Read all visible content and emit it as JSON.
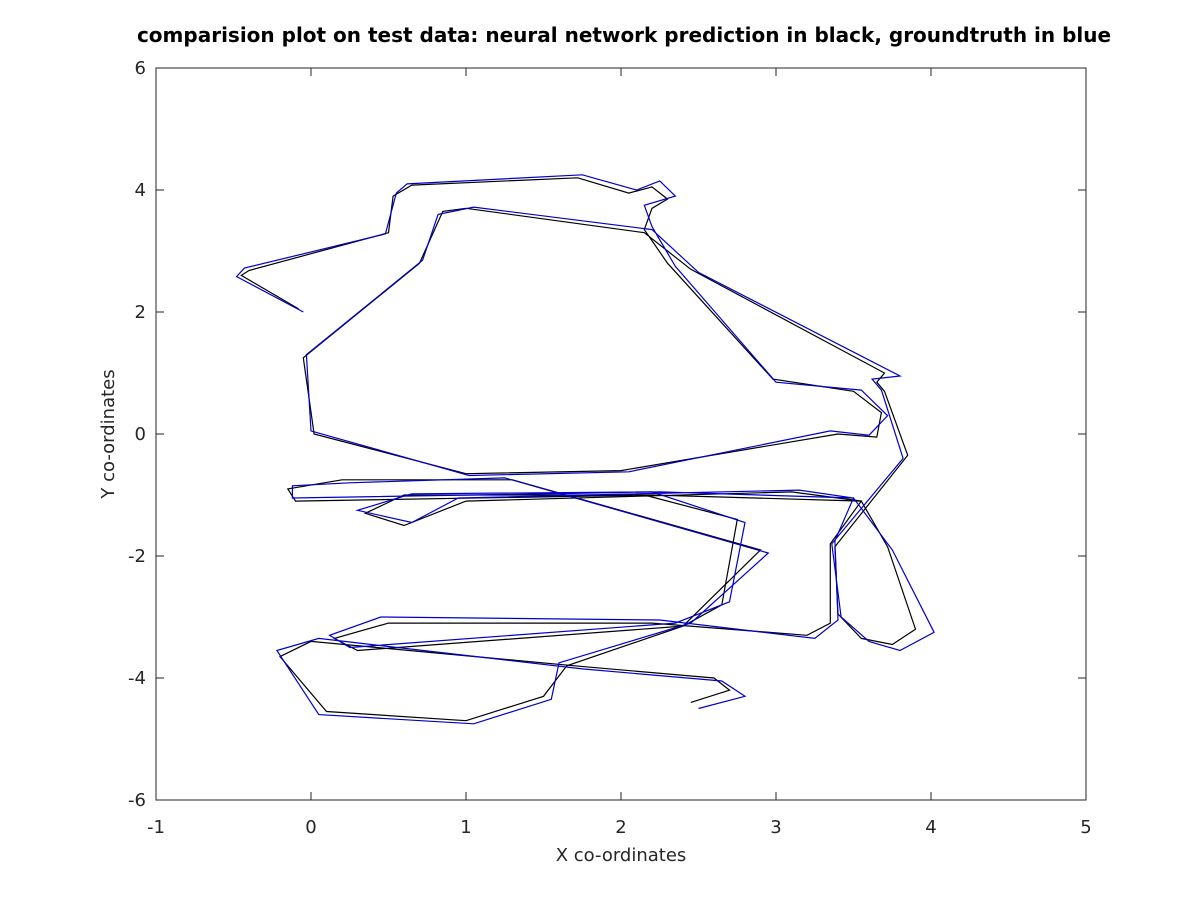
{
  "chart_data": {
    "type": "line",
    "title": "comparision plot on test data: neural network prediction in black, groundtruth in blue",
    "xlabel": "X co-ordinates",
    "ylabel": "Y co-ordinates",
    "xlim": [
      -1,
      5
    ],
    "xticks": [
      -1,
      0,
      1,
      2,
      3,
      4,
      5
    ],
    "ylim": [
      -6,
      6
    ],
    "yticks": [
      -6,
      -4,
      -2,
      0,
      2,
      4,
      6
    ],
    "series": [
      {
        "color": "#000000",
        "x": [
          -0.08,
          -0.45,
          -0.4,
          0.5,
          0.53,
          0.65,
          1.72,
          2.05,
          2.2,
          2.3,
          2.2,
          2.15,
          2.3,
          2.98,
          3.5,
          3.68,
          3.65,
          3.4,
          2.0,
          1.0,
          0.02,
          -0.05,
          0.7,
          0.85,
          1.0,
          2.15,
          2.45,
          3.7,
          3.65,
          3.7,
          3.85,
          3.38,
          3.4,
          3.55,
          3.75,
          3.9,
          3.72,
          3.55,
          3.1,
          1.0,
          0.6,
          0.35,
          0.6,
          2.15,
          2.75,
          2.65,
          2.4,
          0.3,
          0.15,
          0.5,
          2.2,
          3.2,
          3.35,
          3.35,
          3.55,
          2.2,
          -0.1,
          -0.15,
          0.2,
          1.3,
          2.9,
          2.4,
          1.65,
          1.5,
          1.0,
          0.1,
          -0.2,
          0.0,
          1.7,
          2.6,
          2.7,
          2.45
        ],
        "values": [
          2.05,
          2.6,
          2.68,
          3.3,
          3.9,
          4.08,
          4.2,
          3.95,
          4.05,
          3.85,
          3.7,
          3.35,
          2.8,
          0.9,
          0.7,
          0.35,
          -0.05,
          0.0,
          -0.6,
          -0.65,
          0.0,
          1.25,
          2.8,
          3.65,
          3.7,
          3.3,
          2.7,
          1.0,
          0.85,
          0.7,
          -0.35,
          -1.85,
          -2.95,
          -3.35,
          -3.45,
          -3.2,
          -1.85,
          -1.1,
          -0.95,
          -1.1,
          -1.5,
          -1.3,
          -1.0,
          -1.0,
          -1.4,
          -2.8,
          -3.15,
          -3.55,
          -3.35,
          -3.1,
          -3.1,
          -3.3,
          -3.1,
          -1.8,
          -1.1,
          -1.0,
          -1.1,
          -0.9,
          -0.75,
          -0.75,
          -1.9,
          -3.15,
          -3.8,
          -4.3,
          -4.7,
          -4.55,
          -3.65,
          -3.4,
          -3.8,
          -4.0,
          -4.2,
          -4.4
        ]
      },
      {
        "color": "#0000cc",
        "x": [
          -0.05,
          -0.48,
          -0.43,
          0.48,
          0.55,
          0.62,
          1.75,
          2.1,
          2.25,
          2.35,
          2.15,
          2.2,
          2.35,
          3.0,
          3.55,
          3.72,
          3.6,
          3.35,
          2.05,
          1.02,
          0.0,
          -0.03,
          0.72,
          0.82,
          1.05,
          2.2,
          2.5,
          3.8,
          3.62,
          3.68,
          3.82,
          3.36,
          3.42,
          3.6,
          3.8,
          4.02,
          3.75,
          3.5,
          3.15,
          0.95,
          0.65,
          0.3,
          0.65,
          2.2,
          2.8,
          2.7,
          2.35,
          0.25,
          0.12,
          0.45,
          2.25,
          3.25,
          3.4,
          3.38,
          3.5,
          2.25,
          -0.12,
          -0.12,
          0.25,
          1.25,
          2.95,
          2.45,
          1.6,
          1.55,
          1.05,
          0.05,
          -0.22,
          0.05,
          1.75,
          2.65,
          2.8,
          2.5
        ],
        "values": [
          2.0,
          2.58,
          2.72,
          3.28,
          3.95,
          4.1,
          4.25,
          4.0,
          4.15,
          3.9,
          3.75,
          3.4,
          2.75,
          0.85,
          0.72,
          0.3,
          -0.02,
          0.05,
          -0.62,
          -0.68,
          0.05,
          1.3,
          2.85,
          3.6,
          3.72,
          3.35,
          2.65,
          0.95,
          0.9,
          0.72,
          -0.4,
          -1.8,
          -3.0,
          -3.4,
          -3.55,
          -3.25,
          -1.9,
          -1.05,
          -0.92,
          -1.05,
          -1.45,
          -1.25,
          -0.98,
          -0.95,
          -1.45,
          -2.75,
          -3.1,
          -3.5,
          -3.3,
          -3.0,
          -3.05,
          -3.35,
          -3.05,
          -1.75,
          -1.05,
          -0.95,
          -1.05,
          -0.85,
          -0.8,
          -0.72,
          -1.95,
          -3.1,
          -3.75,
          -4.35,
          -4.75,
          -4.6,
          -3.55,
          -3.35,
          -3.85,
          -4.05,
          -4.3,
          -4.5
        ]
      }
    ]
  }
}
